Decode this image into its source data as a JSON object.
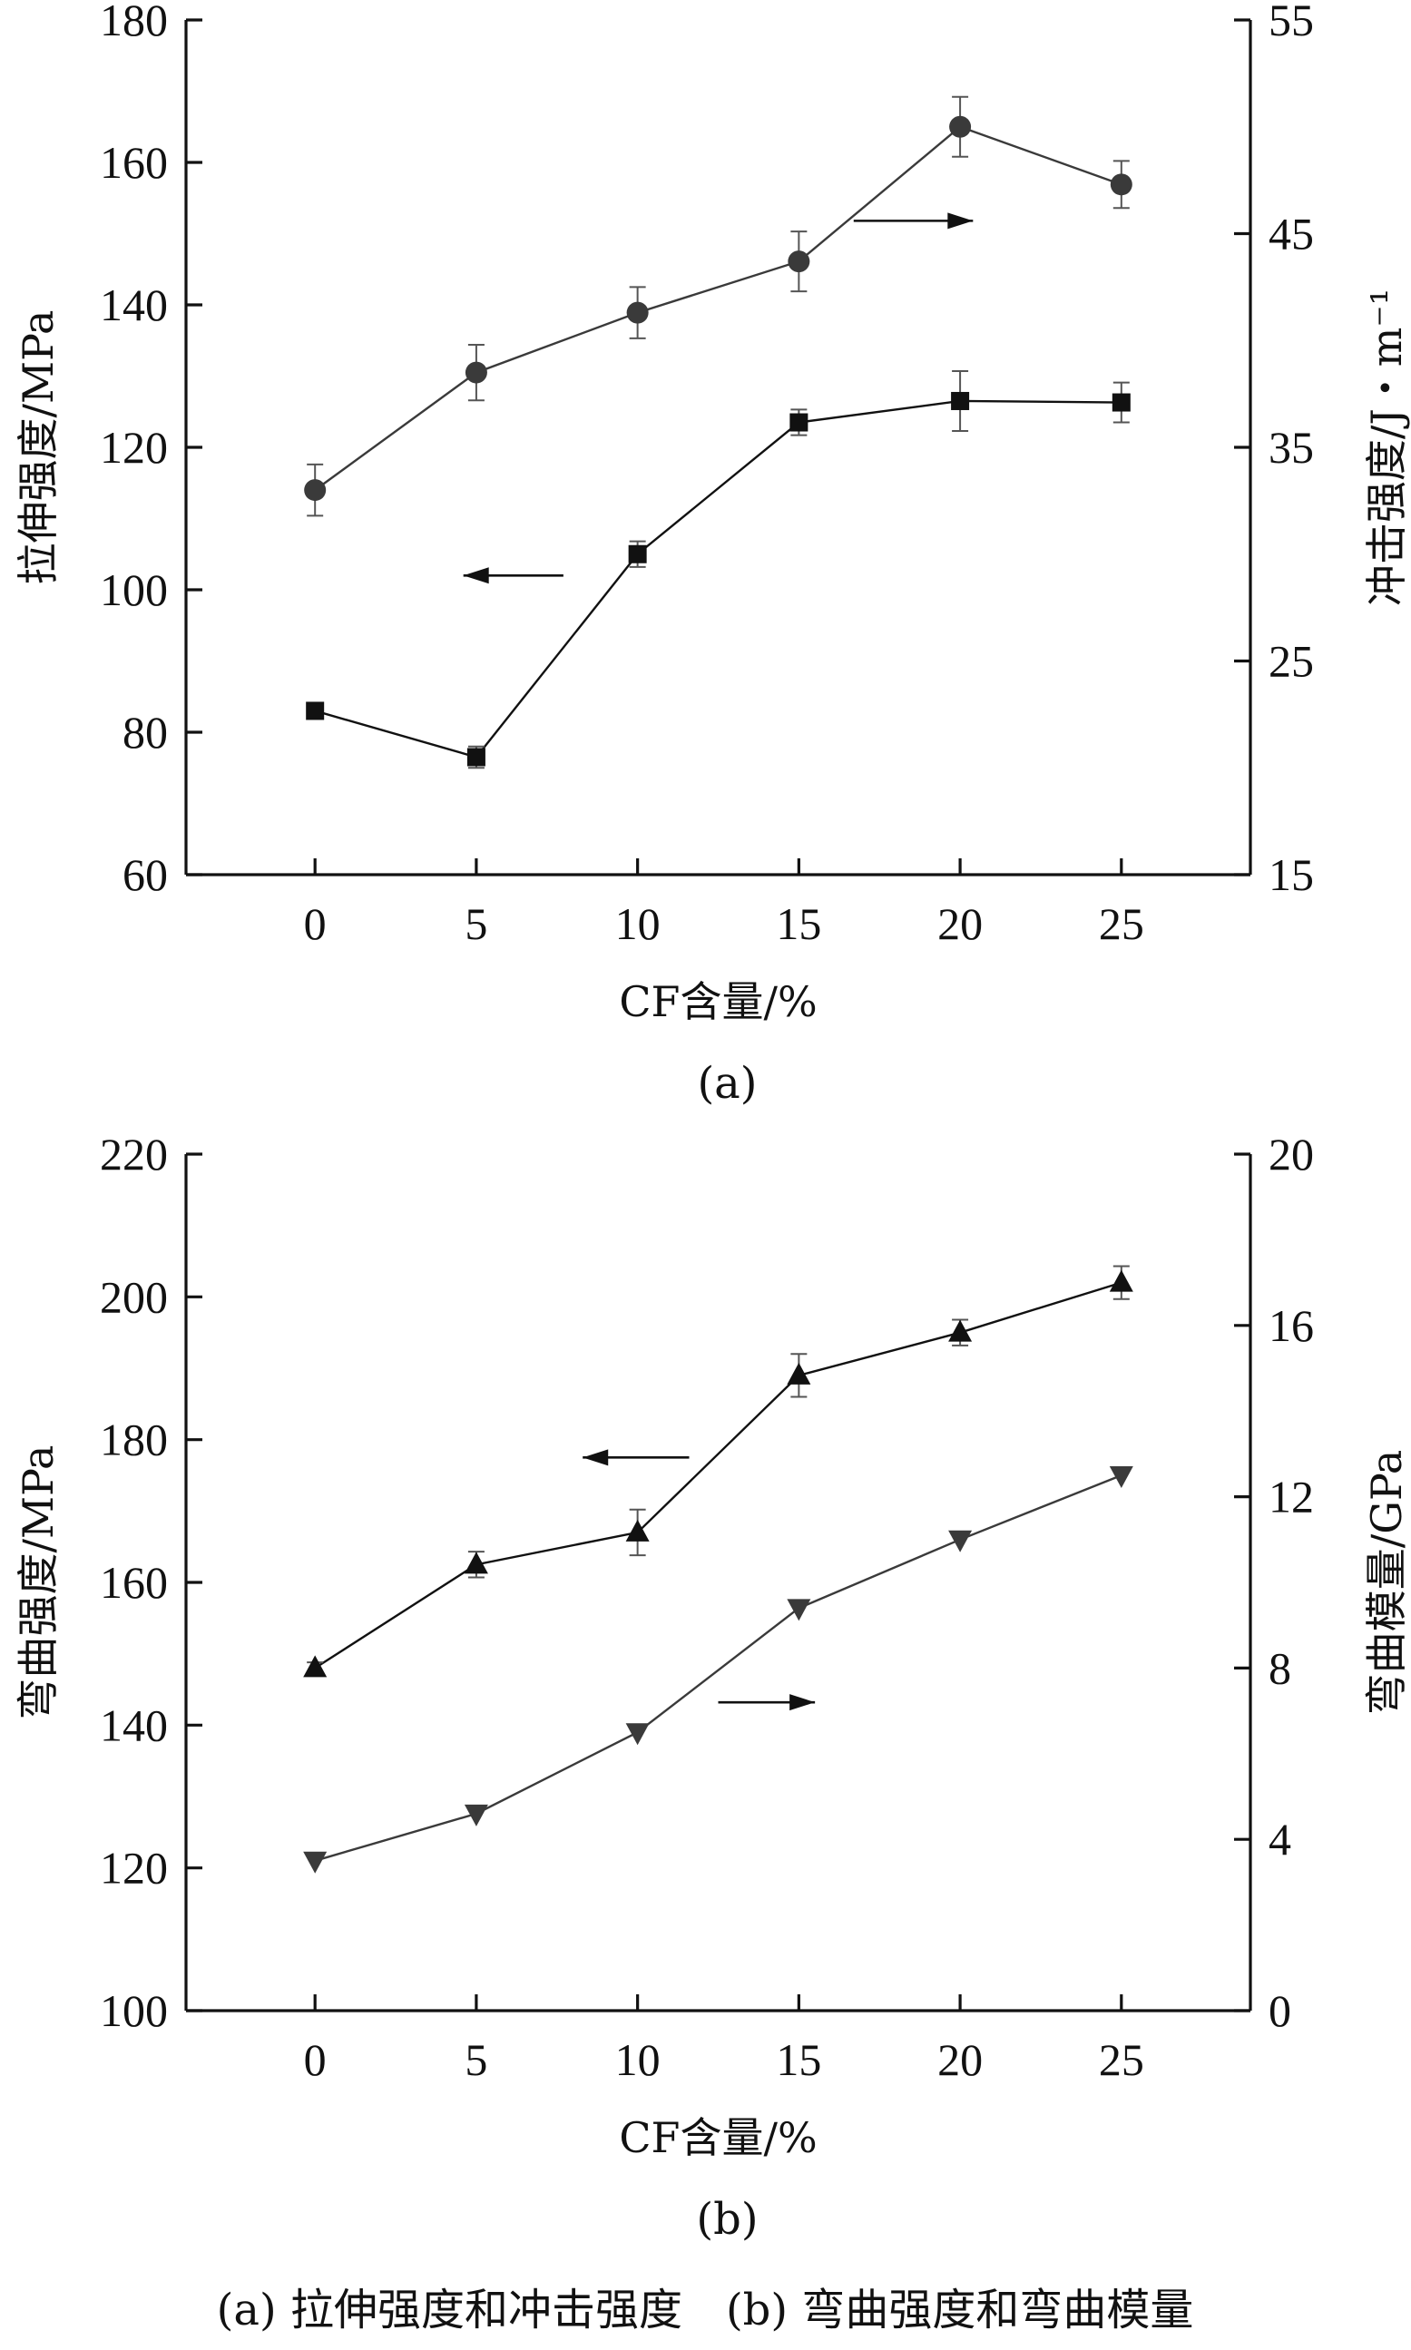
{
  "chart_data": [
    {
      "type": "line",
      "panel_label": "(a)",
      "x": [
        0,
        5,
        10,
        15,
        20,
        25
      ],
      "xlim": [
        -4,
        29
      ],
      "xticks": [
        0,
        5,
        10,
        15,
        20,
        25
      ],
      "xlabel": "CF含量/%",
      "ylabel": "拉伸强度/MPa",
      "ylim": [
        60,
        180
      ],
      "yticks": [
        60,
        80,
        100,
        120,
        140,
        160,
        180
      ],
      "y2label": "冲击强度/J・m⁻¹",
      "y2lim": [
        15,
        55
      ],
      "y2ticks": [
        15,
        25,
        35,
        45,
        55
      ],
      "series": [
        {
          "axis": "left",
          "marker": "square",
          "color": "#111111",
          "values": [
            83,
            76.5,
            105,
            123.5,
            126.5,
            126.3
          ],
          "errors": [
            0.8,
            1.5,
            1.8,
            1.8,
            4.2,
            2.8
          ]
        },
        {
          "axis": "right",
          "marker": "circle",
          "color": "#3a3a3a",
          "values": [
            33,
            38.5,
            41.3,
            43.7,
            50,
            47.3
          ],
          "errors": [
            1.2,
            1.3,
            1.2,
            1.4,
            1.4,
            1.1
          ]
        }
      ],
      "arrows": [
        {
          "axis": "left",
          "direction": "left",
          "y": 102,
          "x_from": 7.7,
          "x_to": 4.6
        },
        {
          "axis": "right",
          "direction": "right",
          "y": 45.6,
          "x_from": 16.7,
          "x_to": 20.4
        }
      ]
    },
    {
      "type": "line",
      "panel_label": "(b)",
      "x": [
        0,
        5,
        10,
        15,
        20,
        25
      ],
      "xlim": [
        -4,
        29
      ],
      "xticks": [
        0,
        5,
        10,
        15,
        20,
        25
      ],
      "xlabel": "CF含量/%",
      "ylabel": "弯曲强度/MPa",
      "ylim": [
        100,
        220
      ],
      "yticks": [
        100,
        120,
        140,
        160,
        180,
        200,
        220
      ],
      "y2label": "弯曲模量/GPa",
      "y2lim": [
        0,
        20
      ],
      "y2ticks": [
        0,
        4,
        8,
        12,
        16,
        20
      ],
      "series": [
        {
          "axis": "left",
          "marker": "triangle-up",
          "color": "#111111",
          "values": [
            148,
            162.5,
            167,
            189,
            195,
            202
          ],
          "errors": [
            0.8,
            1.8,
            3.2,
            3.0,
            1.8,
            2.3
          ]
        },
        {
          "axis": "right",
          "marker": "triangle-down",
          "color": "#3a3a3a",
          "values": [
            3.5,
            4.6,
            6.5,
            9.4,
            11,
            12.5
          ],
          "errors": [
            0,
            0,
            0,
            0,
            0,
            0
          ]
        }
      ],
      "arrows": [
        {
          "axis": "left",
          "direction": "left",
          "y": 177.5,
          "x_from": 11.6,
          "x_to": 8.3
        },
        {
          "axis": "right",
          "direction": "right",
          "y": 7.2,
          "x_from": 12.5,
          "x_to": 15.5
        }
      ]
    }
  ],
  "caption": "(a) 拉伸强度和冲击强度　(b) 弯曲强度和弯曲模量"
}
